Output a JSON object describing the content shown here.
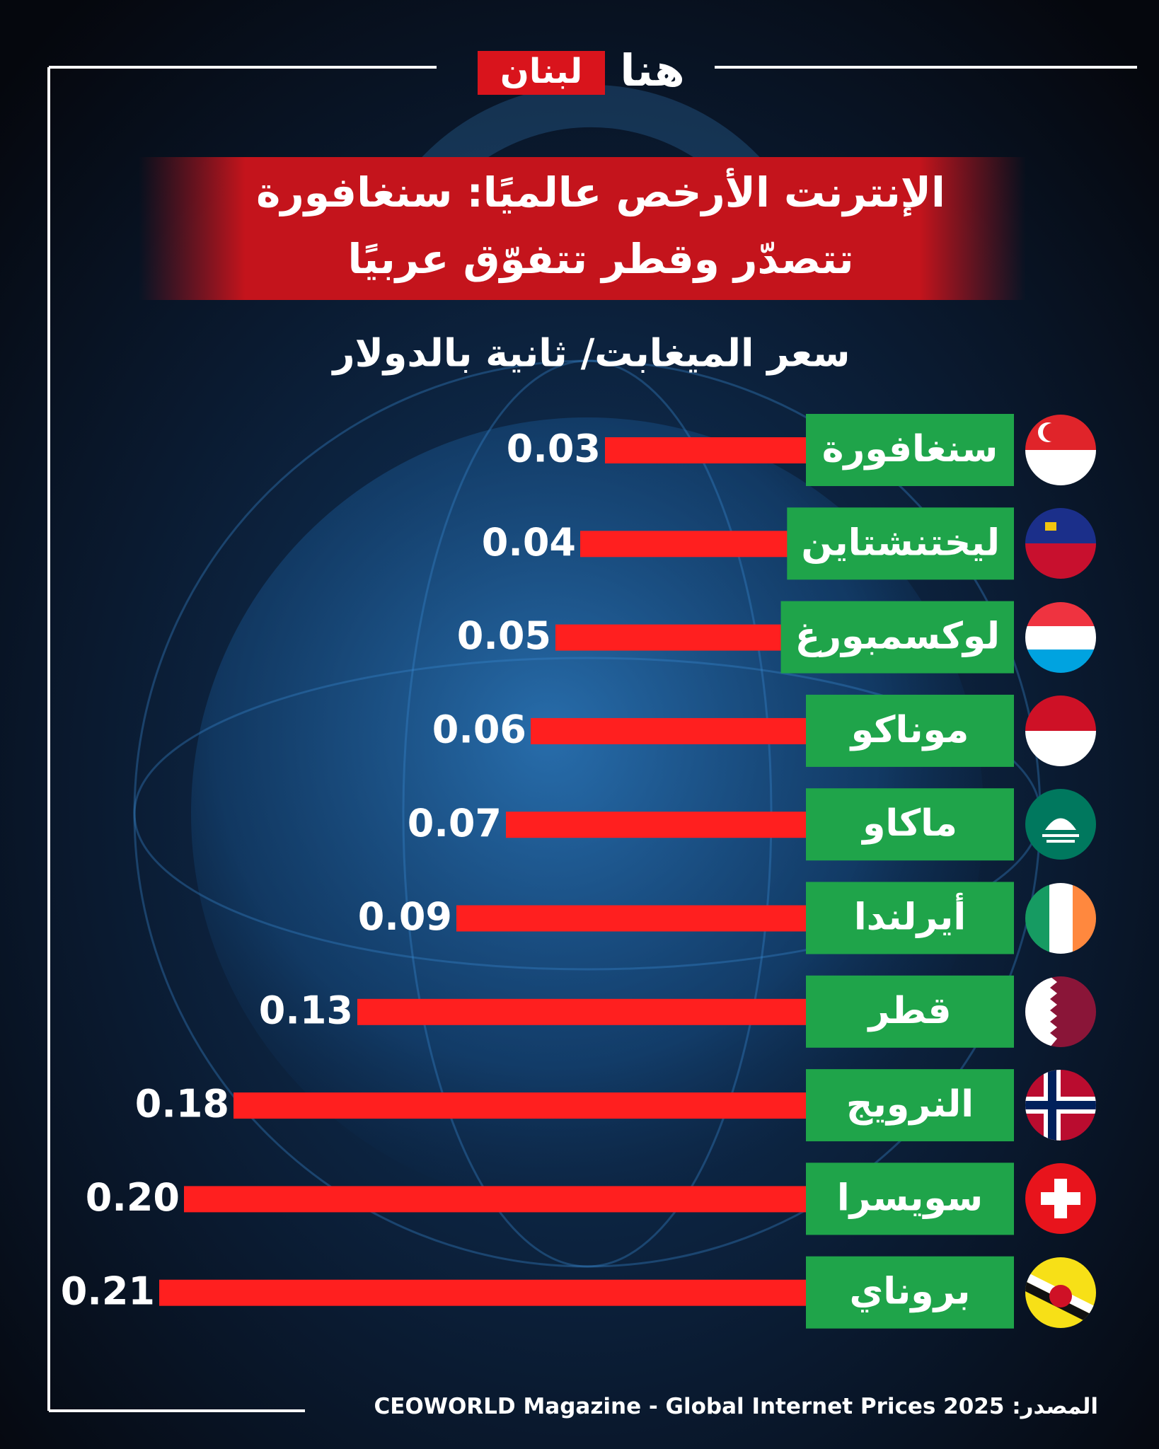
{
  "logo": [
    "هنا",
    "لبنان"
  ],
  "chart_data": {
    "type": "bar",
    "orientation": "horizontal",
    "title": [
      "الإنترنت الأرخص عالميًا: سنغافورة",
      "تتصدّر وقطر تتفوّق عربيًا"
    ],
    "subtitle": "سعر الميغابت/ ثانية بالدولار",
    "categories": [
      "سنغافورة",
      "ليختنشتاين",
      "لوكسمبورغ",
      "موناكو",
      "ماكاو",
      "أيرلندا",
      "قطر",
      "النرويج",
      "سويسرا",
      "بروناي"
    ],
    "values": [
      0.03,
      0.04,
      0.05,
      0.06,
      0.07,
      0.09,
      0.13,
      0.18,
      0.2,
      0.21
    ],
    "value_labels": [
      "0.03",
      "0.04",
      "0.05",
      "0.06",
      "0.07",
      "0.09",
      "0.13",
      "0.18",
      "0.20",
      "0.21"
    ],
    "color": "#ff1f1f",
    "label_color": "#1fa44a",
    "source": "المصدر: CEOWORLD Magazine - Global Internet Prices 2025"
  }
}
